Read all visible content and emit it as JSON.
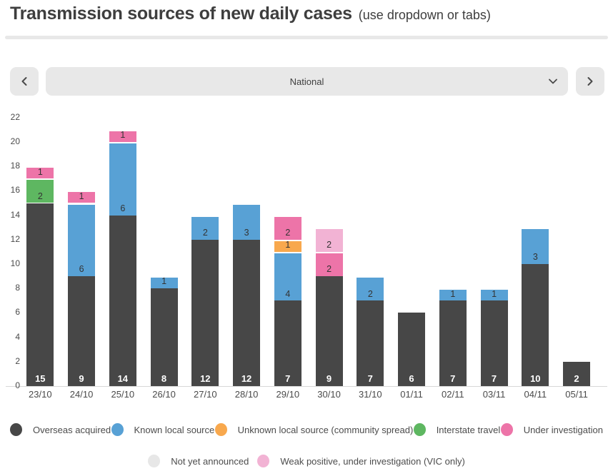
{
  "header": {
    "title": "Transmission sources of new daily cases",
    "subtitle": "(use dropdown or tabs)"
  },
  "controls": {
    "region_selector_value": "National",
    "prev_icon": "chevron-left-icon",
    "next_icon": "chevron-right-icon",
    "dropdown_icon": "chevron-down-icon"
  },
  "colors": {
    "ui_gray": "#e8e8e8",
    "text_dark": "#3e3e3e",
    "axis_text": "#4a4a4a",
    "baseline": "#d8d8d8"
  },
  "chart_data": {
    "type": "bar",
    "stacked": true,
    "title": "Transmission sources of new daily cases",
    "xlabel": "",
    "ylabel": "",
    "ylim": [
      0,
      22
    ],
    "yticks": [
      0,
      2,
      4,
      6,
      8,
      10,
      12,
      14,
      16,
      18,
      20,
      22
    ],
    "grid": false,
    "legend_position": "bottom",
    "categories": [
      "23/10",
      "24/10",
      "25/10",
      "26/10",
      "27/10",
      "28/10",
      "29/10",
      "30/10",
      "31/10",
      "01/11",
      "02/11",
      "03/11",
      "04/11",
      "05/11"
    ],
    "series": [
      {
        "name": "Overseas acquired",
        "color": "#474747",
        "values": [
          15,
          9,
          14,
          8,
          12,
          12,
          7,
          9,
          7,
          6,
          7,
          7,
          10,
          2
        ]
      },
      {
        "name": "Known local source",
        "color": "#58a1d5",
        "values": [
          0,
          6,
          6,
          1,
          2,
          3,
          4,
          0,
          2,
          0,
          1,
          1,
          3,
          0
        ]
      },
      {
        "name": "Unknown local source (community spread)",
        "color": "#f8a84d",
        "values": [
          0,
          0,
          0,
          0,
          0,
          0,
          1,
          0,
          0,
          0,
          0,
          0,
          0,
          0
        ]
      },
      {
        "name": "Interstate travel",
        "color": "#5eb761",
        "values": [
          2,
          0,
          0,
          0,
          0,
          0,
          0,
          0,
          0,
          0,
          0,
          0,
          0,
          0
        ]
      },
      {
        "name": "Under investigation",
        "color": "#ed74a8",
        "values": [
          1,
          1,
          1,
          0,
          0,
          0,
          2,
          2,
          0,
          0,
          0,
          0,
          0,
          0
        ]
      },
      {
        "name": "Weak positive, under investigation (VIC only)",
        "color": "#f2b3d4",
        "values": [
          0,
          0,
          0,
          0,
          0,
          0,
          0,
          2,
          0,
          0,
          0,
          0,
          0,
          0
        ]
      },
      {
        "name": "Not yet announced",
        "color": "#e7e7e7",
        "values": [
          0,
          0,
          0,
          0,
          0,
          0,
          0,
          0,
          0,
          0,
          0,
          0,
          0,
          0
        ]
      }
    ],
    "totals": [
      18,
      16,
      21,
      9,
      14,
      15,
      14,
      13,
      9,
      6,
      8,
      8,
      13,
      2
    ],
    "legend_rows": [
      [
        0,
        1,
        2,
        3,
        4
      ],
      [
        6,
        5
      ]
    ]
  }
}
